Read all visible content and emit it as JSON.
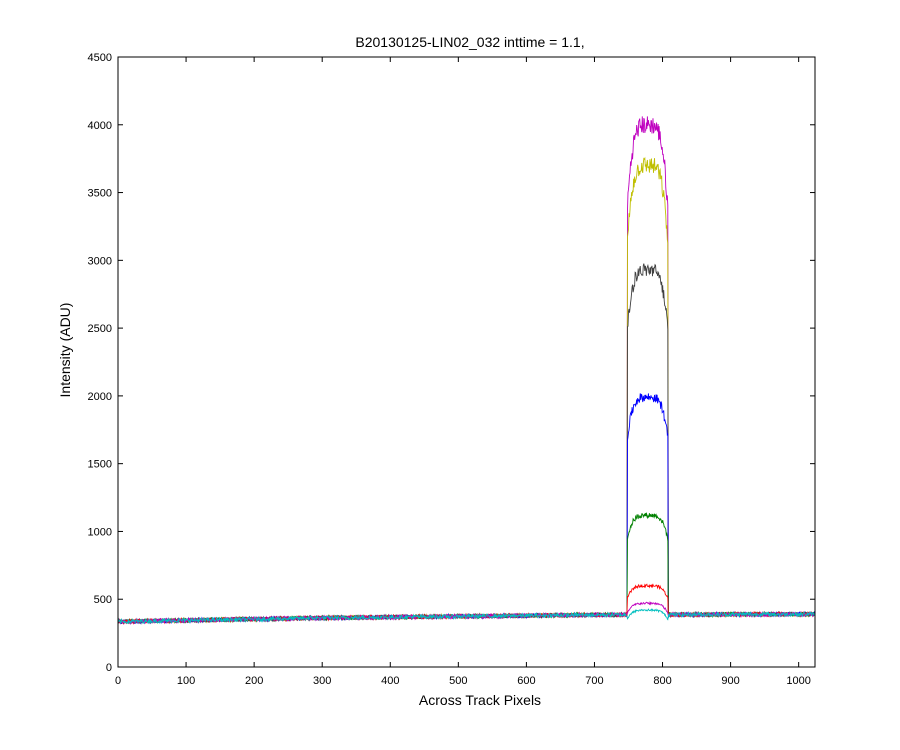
{
  "chart_data": {
    "type": "line",
    "title": "B20130125-LIN02_032 inttime = 1.1,",
    "xlabel": "Across Track Pixels",
    "ylabel": "Intensity (ADU)",
    "xlim": [
      0,
      1024
    ],
    "ylim": [
      0,
      4500
    ],
    "xticks": [
      "0",
      "100",
      "200",
      "300",
      "400",
      "500",
      "600",
      "700",
      "800",
      "900",
      "1000"
    ],
    "yticks": [
      "0",
      "500",
      "1000",
      "1500",
      "2000",
      "2500",
      "3000",
      "3500",
      "4000",
      "4500"
    ],
    "grid": false,
    "legend": "none",
    "baseline": {
      "x": [
        0,
        300,
        700,
        1024
      ],
      "y": [
        335,
        362,
        385,
        390
      ]
    },
    "peak_region": {
      "x_start": 748,
      "x_end": 808
    },
    "series": [
      {
        "color": "#bf00bf",
        "peak": 4000
      },
      {
        "color": "#bfbf00",
        "peak": 3700
      },
      {
        "color": "#404040",
        "peak": 2930
      },
      {
        "color": "#0000ff",
        "peak": 1990
      },
      {
        "color": "#008000",
        "peak": 1120
      },
      {
        "color": "#ff0000",
        "peak": 600
      },
      {
        "color": "#bf00bf",
        "peak": 470
      },
      {
        "color": "#00bfbf",
        "peak": 420
      }
    ]
  }
}
